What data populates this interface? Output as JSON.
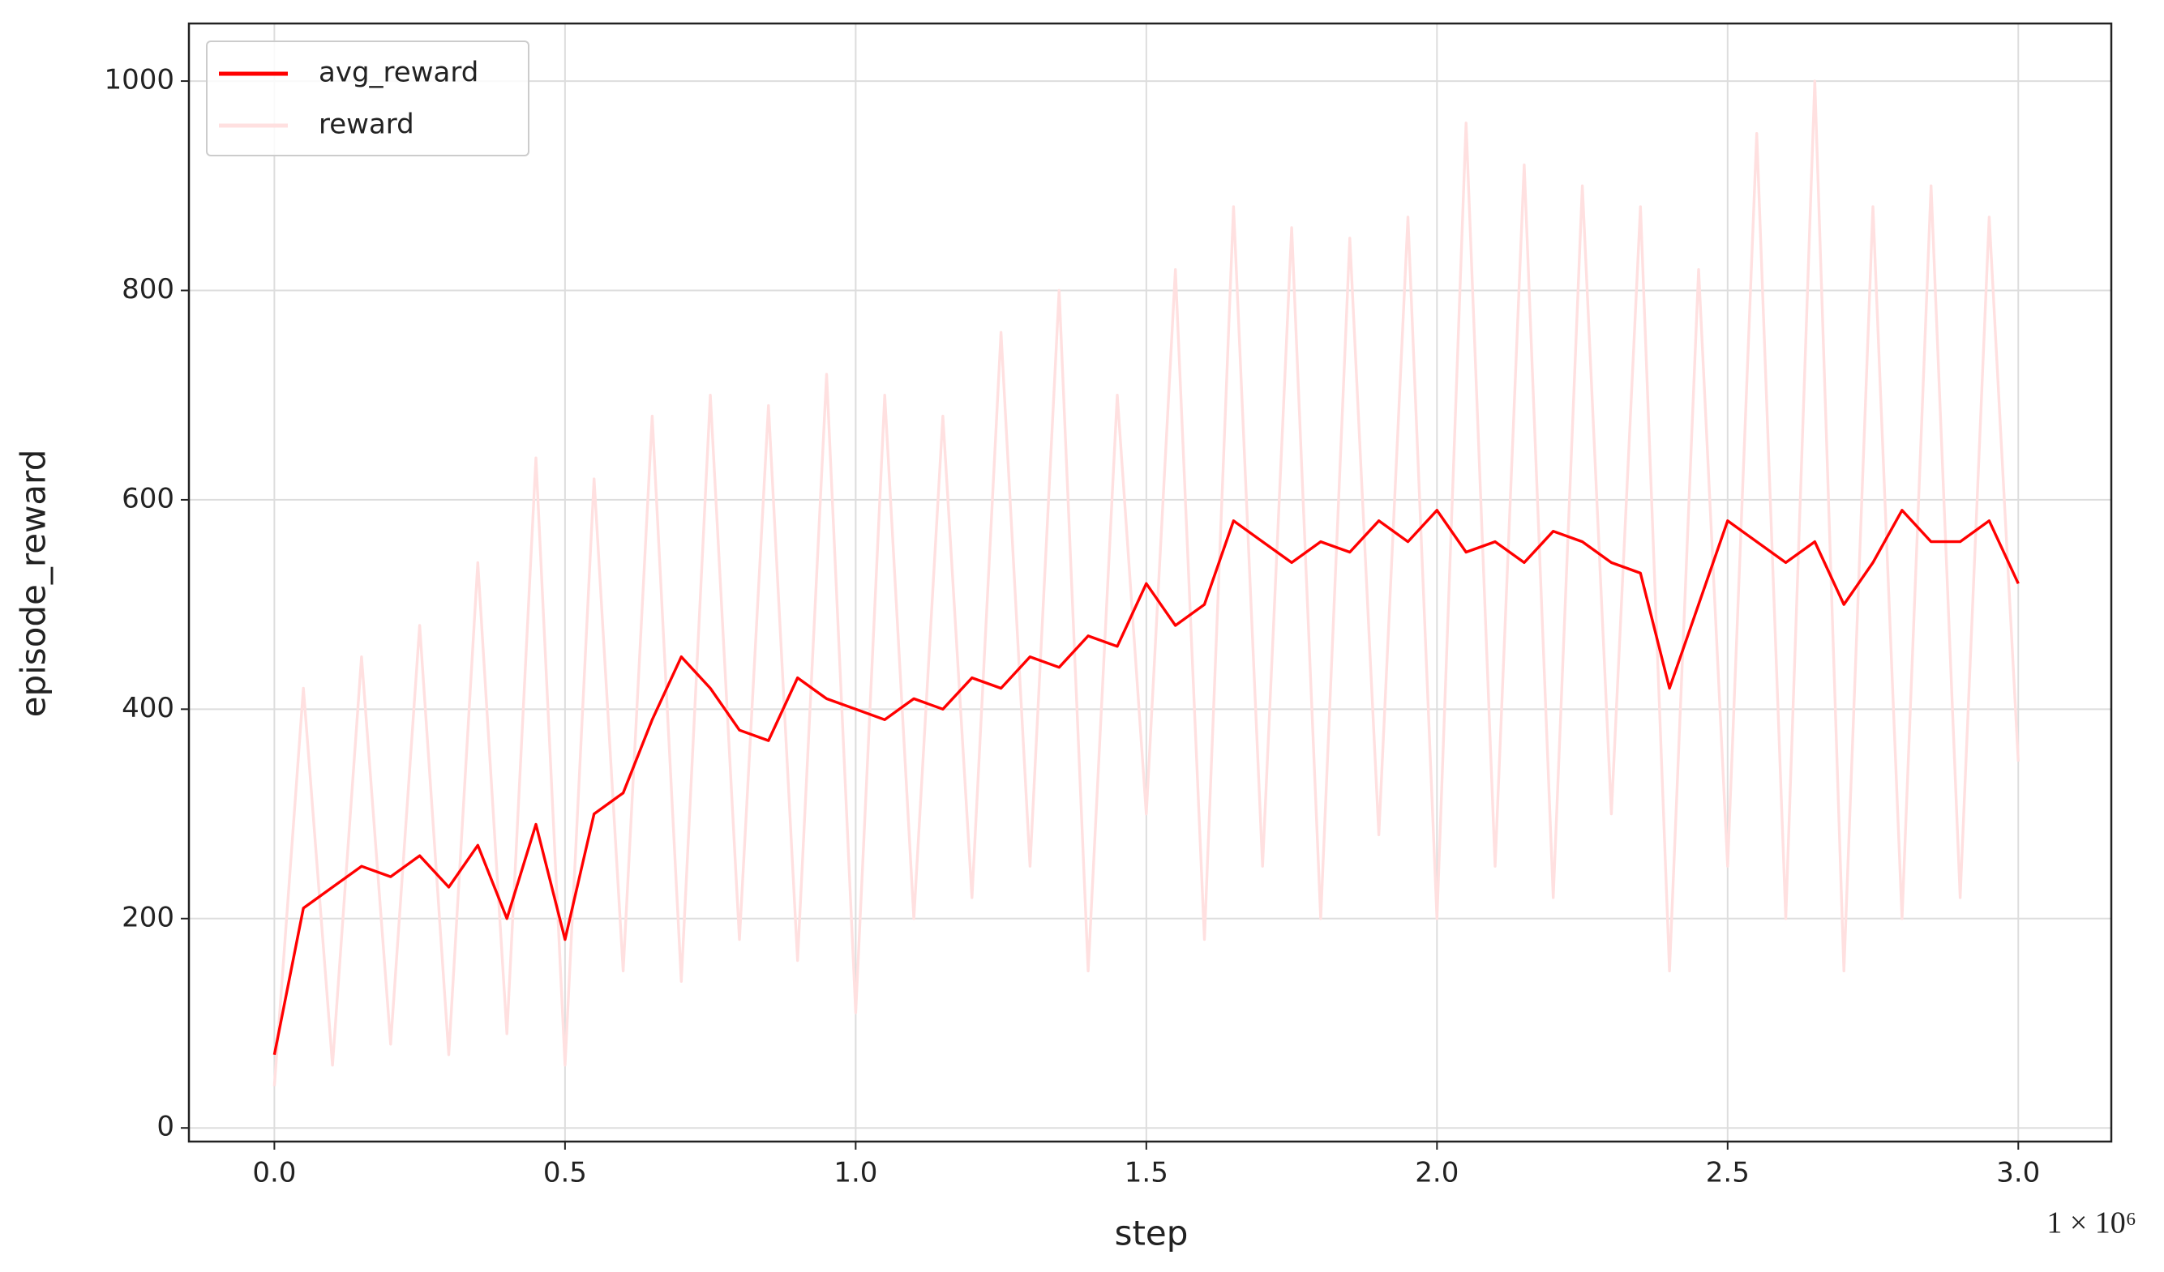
{
  "chart_data": {
    "type": "line",
    "xlabel": "step",
    "ylabel": "episode_reward",
    "x_multiplier": "1 × 10⁶",
    "x": [
      0.0,
      0.05,
      0.1,
      0.15,
      0.2,
      0.25,
      0.3,
      0.35,
      0.4,
      0.45,
      0.5,
      0.55,
      0.6,
      0.65,
      0.7,
      0.75,
      0.8,
      0.85,
      0.9,
      0.95,
      1.0,
      1.05,
      1.1,
      1.15,
      1.2,
      1.25,
      1.3,
      1.35,
      1.4,
      1.45,
      1.5,
      1.55,
      1.6,
      1.65,
      1.7,
      1.75,
      1.8,
      1.85,
      1.9,
      1.95,
      2.0,
      2.05,
      2.1,
      2.15,
      2.2,
      2.25,
      2.3,
      2.35,
      2.4,
      2.45,
      2.5,
      2.55,
      2.6,
      2.65,
      2.7,
      2.75,
      2.8,
      2.85,
      2.9,
      2.95,
      3.0
    ],
    "series": [
      {
        "name": "avg_reward",
        "color": "#ff0000",
        "values": [
          70,
          210,
          230,
          250,
          240,
          260,
          230,
          270,
          200,
          290,
          180,
          300,
          320,
          390,
          450,
          420,
          380,
          370,
          430,
          410,
          400,
          390,
          410,
          400,
          430,
          420,
          450,
          440,
          470,
          460,
          520,
          480,
          500,
          580,
          560,
          540,
          560,
          550,
          580,
          560,
          590,
          550,
          560,
          540,
          570,
          560,
          540,
          530,
          420,
          500,
          580,
          560,
          540,
          560,
          500,
          540,
          590,
          560,
          560,
          580,
          520
        ]
      },
      {
        "name": "reward",
        "color": "#ffe0e0",
        "values": [
          40,
          420,
          60,
          450,
          80,
          480,
          70,
          540,
          90,
          640,
          60,
          620,
          150,
          680,
          140,
          700,
          180,
          690,
          160,
          720,
          110,
          700,
          200,
          680,
          220,
          760,
          250,
          800,
          150,
          700,
          300,
          820,
          180,
          880,
          250,
          860,
          200,
          850,
          280,
          870,
          200,
          960,
          250,
          920,
          220,
          900,
          300,
          880,
          150,
          820,
          250,
          950,
          200,
          1000,
          150,
          880,
          200,
          900,
          220,
          870,
          350
        ]
      }
    ],
    "xlim": [
      -0.147,
      3.16
    ],
    "xticks": [
      {
        "value": 0,
        "label": "0.0"
      },
      0.5,
      {
        "value": 1,
        "label": "1.0"
      },
      1.5,
      {
        "value": 2,
        "label": "2.0"
      },
      2.5,
      {
        "value": 3,
        "label": "3.0"
      }
    ],
    "ylim": [
      -13,
      1055
    ],
    "yticks": [
      0,
      200,
      400,
      600,
      800,
      1000
    ],
    "grid": true,
    "legend": "upper left"
  }
}
